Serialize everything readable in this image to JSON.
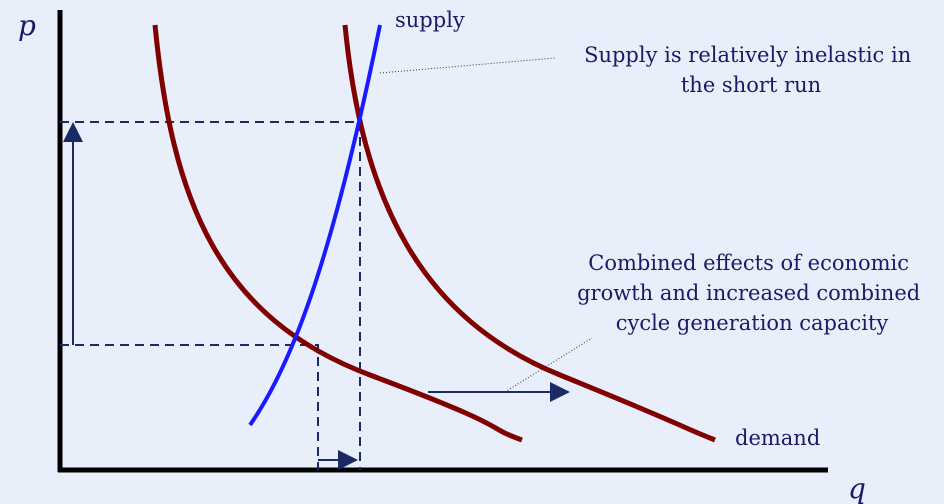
{
  "axes": {
    "y_label": "p",
    "x_label": "q"
  },
  "curves": {
    "supply": "supply",
    "demand": "demand"
  },
  "annotations": [
    {
      "lines": [
        "Supply is relatively inelastic in",
        "the short run"
      ]
    },
    {
      "lines": [
        "Combined effects of economic",
        "growth and increased combined",
        "cycle generation capacity"
      ]
    }
  ]
}
